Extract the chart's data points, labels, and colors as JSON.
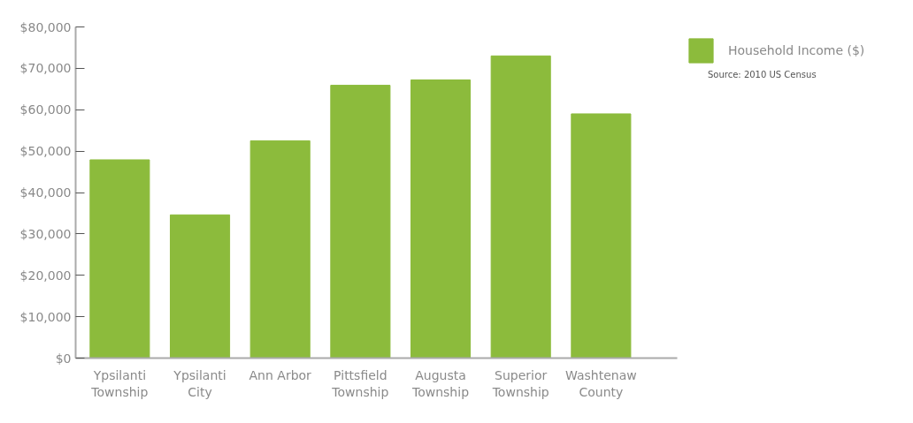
{
  "chart_data": {
    "type": "bar",
    "categories": [
      "Ypsilanti\nTownship",
      "Ypsilanti\nCity",
      "Ann Arbor",
      "Pittsfield\nTownship",
      "Augusta\nTownship",
      "Superior\nTownship",
      "Washtenaw\nCounty"
    ],
    "series": [
      {
        "name": "Household Income ($)",
        "color": "#8cbb3c",
        "values": [
          47900,
          34600,
          52500,
          65900,
          67200,
          73000,
          59000
        ]
      }
    ],
    "ylim": [
      0,
      80000
    ],
    "yticks": [
      {
        "value": 0,
        "label": "$0"
      },
      {
        "value": 10000,
        "label": "$10,000"
      },
      {
        "value": 20000,
        "label": "$20,000"
      },
      {
        "value": 30000,
        "label": "$30,000"
      },
      {
        "value": 40000,
        "label": "$40,000"
      },
      {
        "value": 50000,
        "label": "$50,000"
      },
      {
        "value": 60000,
        "label": "$60,000"
      },
      {
        "value": 70000,
        "label": "$70,000"
      },
      {
        "value": 80000,
        "label": "$80,000"
      }
    ],
    "grid": false,
    "legend": "top right",
    "annotations": [
      "Source: 2010 US Census"
    ]
  }
}
